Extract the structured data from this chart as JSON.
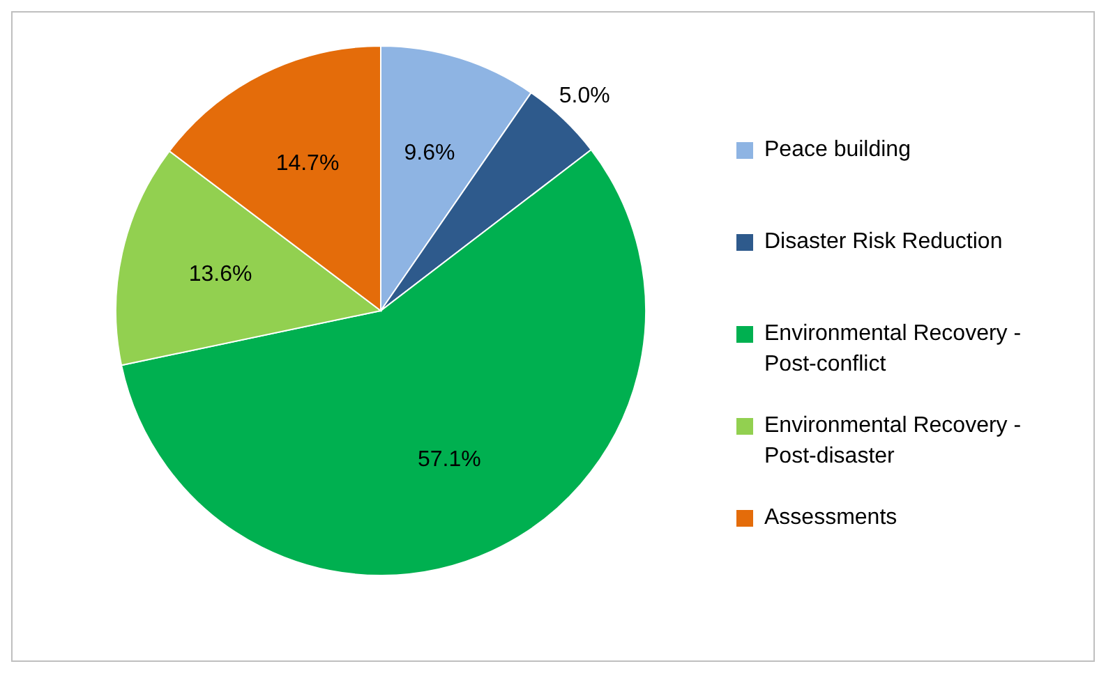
{
  "chart_data": {
    "type": "pie",
    "categories": [
      "Peace building",
      "Disaster Risk Reduction",
      "Environmental Recovery - Post-conflict",
      "Environmental Recovery - Post-disaster",
      "Assessments"
    ],
    "values": [
      9.6,
      5.0,
      57.1,
      13.6,
      14.7
    ],
    "value_labels": [
      "9.6%",
      "5.0%",
      "57.1%",
      "13.6%",
      "14.7%"
    ],
    "colors": [
      "#8eb4e3",
      "#2e5a8c",
      "#00b050",
      "#92d050",
      "#e46c0a"
    ],
    "legend": "right"
  }
}
